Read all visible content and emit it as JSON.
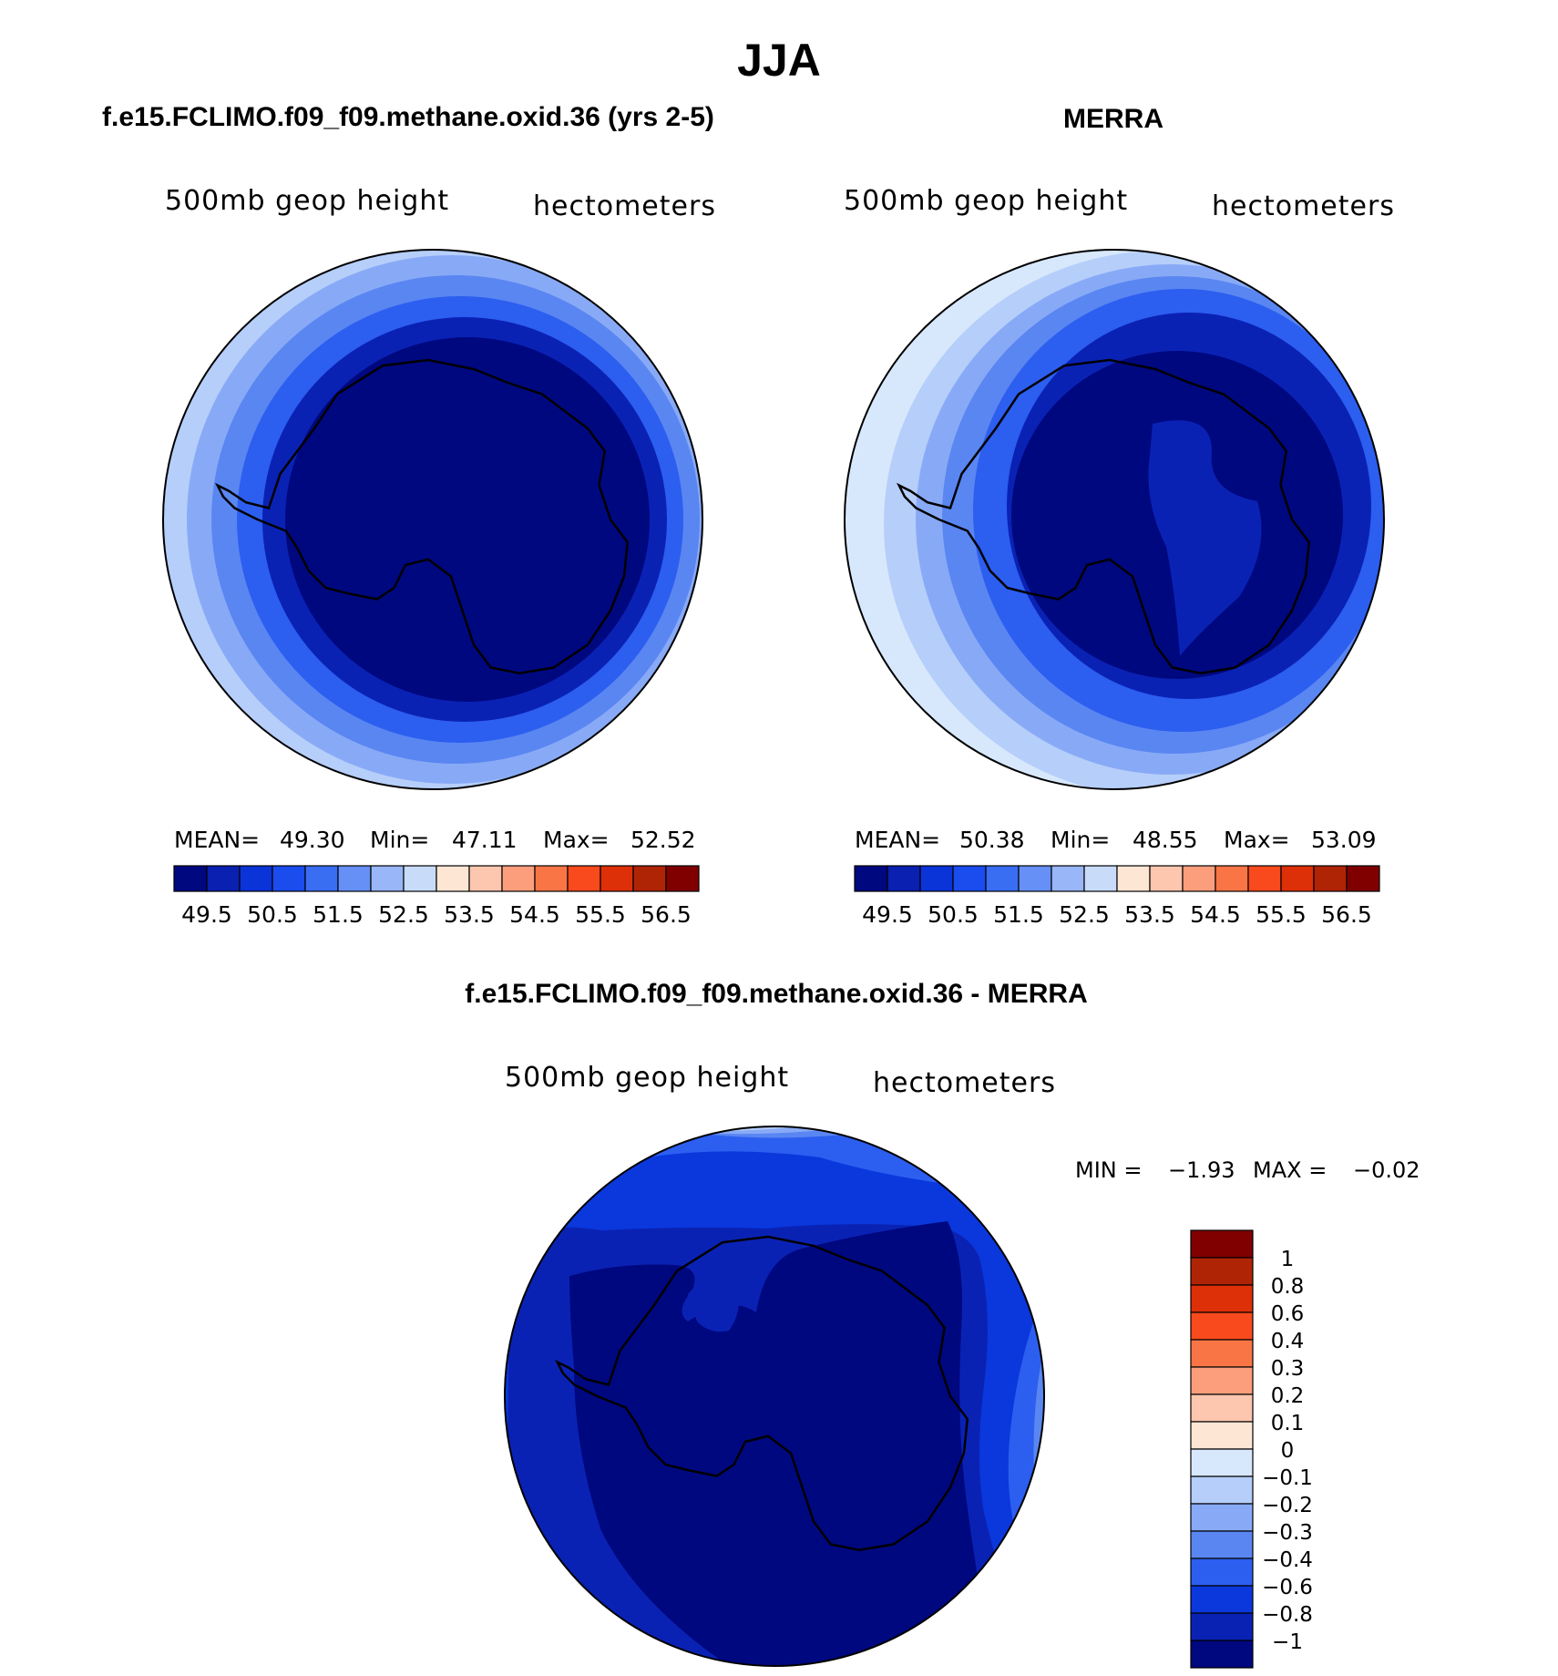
{
  "main_title": "JJA",
  "panels": {
    "left": {
      "title": "f.e15.FCLIMO.f09_f09.methane.oxid.36 (yrs 2-5)",
      "variable": "500mb geop height",
      "units": "hectometers",
      "stats": {
        "mean_label": "MEAN=",
        "mean": "49.30",
        "min_label": "Min=",
        "min": "47.11",
        "max_label": "Max=",
        "max": "52.52"
      }
    },
    "right": {
      "title": "MERRA",
      "variable": "500mb geop height",
      "units": "hectometers",
      "stats": {
        "mean_label": "MEAN=",
        "mean": "50.38",
        "min_label": "Min=",
        "min": "48.55",
        "max_label": "Max=",
        "max": "53.09"
      }
    },
    "diff": {
      "title": "f.e15.FCLIMO.f09_f09.methane.oxid.36 - MERRA",
      "variable": "500mb geop height",
      "units": "hectometers",
      "stats": {
        "min_label": "MIN =",
        "min": "−1.93",
        "max_label": "MAX =",
        "max": "−0.02"
      }
    }
  },
  "colorbar_top": {
    "colors": [
      "#000880",
      "#0a20b0",
      "#0a34d8",
      "#1a4cee",
      "#3a6ef2",
      "#6690f6",
      "#98b6f8",
      "#c8dcfa",
      "#fee6d4",
      "#fdc6ae",
      "#fc9e7c",
      "#fa7546",
      "#f84a1c",
      "#de3008",
      "#b02406",
      "#800000"
    ],
    "tick_labels": [
      "49.5",
      "50.5",
      "51.5",
      "52.5",
      "53.5",
      "54.5",
      "55.5",
      "56.5"
    ]
  },
  "colorbar_diff": {
    "colors_top_to_bottom": [
      "#800000",
      "#b02406",
      "#de3008",
      "#f84a1c",
      "#fa7546",
      "#fc9e7c",
      "#fdc6ae",
      "#fee6d4",
      "#d8e8fc",
      "#b6cefa",
      "#88aaf6",
      "#5a86f2",
      "#2c5ef0",
      "#0a38dc",
      "#0a22b4",
      "#000880"
    ],
    "tick_labels": [
      "1",
      "0.8",
      "0.6",
      "0.4",
      "0.3",
      "0.2",
      "0.1",
      "0",
      "−0.1",
      "−0.2",
      "−0.3",
      "−0.4",
      "−0.6",
      "−0.8",
      "−1"
    ]
  }
}
